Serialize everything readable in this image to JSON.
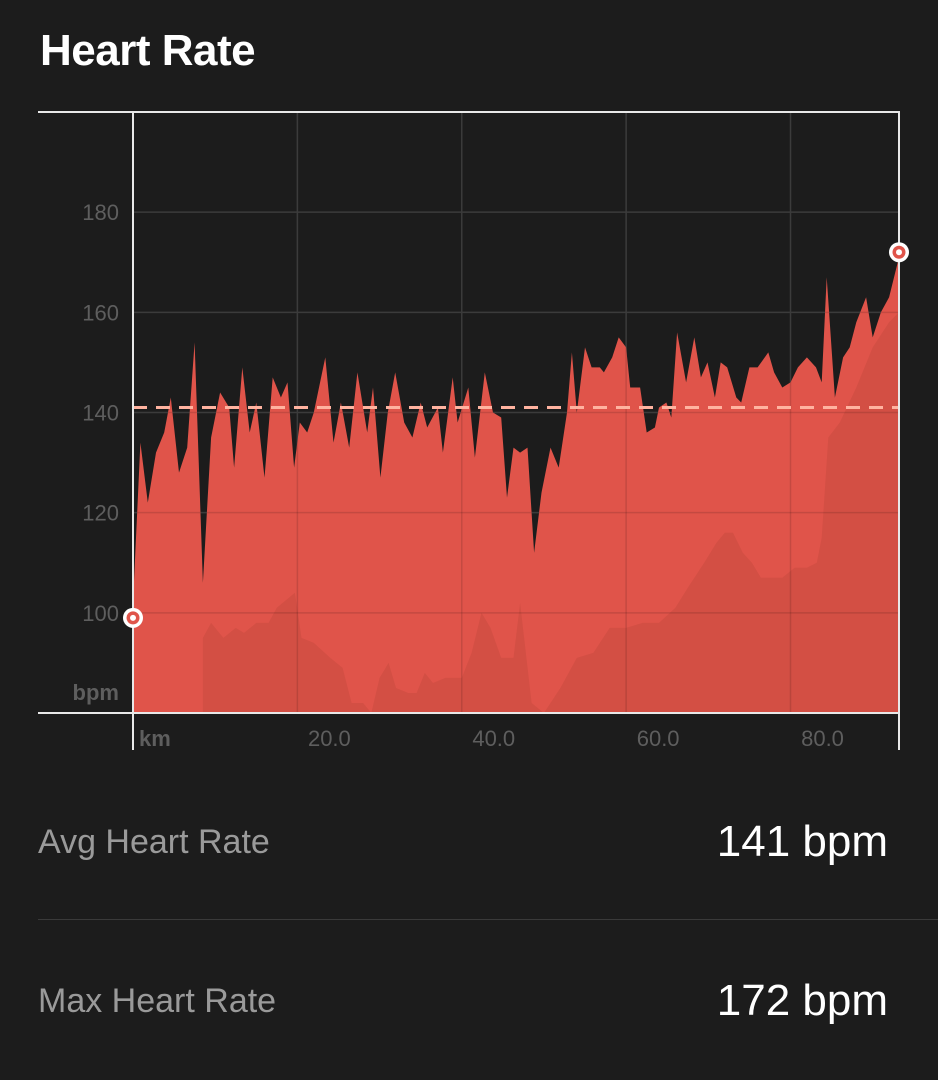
{
  "header": {
    "title": "Heart Rate"
  },
  "stats": {
    "avg_label": "Avg Heart Rate",
    "avg_value": "141 bpm",
    "max_label": "Max Heart Rate",
    "max_value": "172 bpm"
  },
  "colors": {
    "fill": "#e0544a",
    "shadow": "#c84a40",
    "avg_line": "#ffb3a0",
    "grid": "#3b3b3b",
    "frame": "#e8e8e8",
    "tick": "#5e5e5e"
  },
  "chart_data": {
    "type": "area",
    "title": "Heart Rate",
    "xunit": "km",
    "yunit": "bpm",
    "xlim": [
      0,
      93.2
    ],
    "ylim": [
      80,
      200
    ],
    "yticks": [
      100,
      120,
      140,
      160,
      180
    ],
    "xticks": [
      20,
      40,
      60,
      80
    ],
    "xtick_labels": [
      "20.0",
      "40.0",
      "60.0",
      "80.0"
    ],
    "grid": true,
    "avg_line": 141,
    "start_marker": [
      0,
      99
    ],
    "end_marker": [
      93.2,
      172
    ],
    "series": [
      {
        "values": [
          [
            0,
            102
          ],
          [
            0.9,
            134
          ],
          [
            1.8,
            122
          ],
          [
            2.8,
            132
          ],
          [
            3.8,
            136
          ],
          [
            4.6,
            143
          ],
          [
            5.6,
            128
          ],
          [
            6.6,
            133
          ],
          [
            7.5,
            154
          ],
          [
            8.5,
            106
          ],
          [
            9.5,
            135
          ],
          [
            10.6,
            144
          ],
          [
            11.7,
            141
          ],
          [
            12.3,
            129
          ],
          [
            13.3,
            149
          ],
          [
            14.2,
            136
          ],
          [
            15.0,
            142
          ],
          [
            16.0,
            127
          ],
          [
            17.0,
            147
          ],
          [
            18.0,
            143
          ],
          [
            18.8,
            146
          ],
          [
            19.6,
            129
          ],
          [
            20.3,
            138
          ],
          [
            21.2,
            136
          ],
          [
            22.0,
            140
          ],
          [
            23.4,
            151
          ],
          [
            24.4,
            134
          ],
          [
            25.3,
            142
          ],
          [
            26.3,
            133
          ],
          [
            27.3,
            148
          ],
          [
            28.5,
            136
          ],
          [
            29.2,
            145
          ],
          [
            30.1,
            127
          ],
          [
            31.0,
            140
          ],
          [
            31.9,
            148
          ],
          [
            33.0,
            138
          ],
          [
            34.0,
            135
          ],
          [
            35.0,
            142
          ],
          [
            35.8,
            137
          ],
          [
            37.1,
            141
          ],
          [
            37.7,
            132
          ],
          [
            38.9,
            147
          ],
          [
            39.5,
            138
          ],
          [
            40.8,
            145
          ],
          [
            41.6,
            131
          ],
          [
            42.8,
            148
          ],
          [
            43.8,
            140
          ],
          [
            44.8,
            139
          ],
          [
            45.5,
            123
          ],
          [
            46.3,
            133
          ],
          [
            47.1,
            132
          ],
          [
            48.0,
            133
          ],
          [
            48.8,
            112
          ],
          [
            49.7,
            124
          ],
          [
            50.8,
            133
          ],
          [
            51.8,
            129
          ],
          [
            52.8,
            140
          ],
          [
            53.4,
            152
          ],
          [
            54.0,
            140
          ],
          [
            55.0,
            153
          ],
          [
            55.8,
            149
          ],
          [
            56.8,
            149
          ],
          [
            57.3,
            148
          ],
          [
            58.3,
            151
          ],
          [
            59.1,
            155
          ],
          [
            60.0,
            153
          ],
          [
            60.5,
            145
          ],
          [
            61.7,
            145
          ],
          [
            62.5,
            136
          ],
          [
            63.5,
            137
          ],
          [
            64.0,
            141
          ],
          [
            64.9,
            142
          ],
          [
            65.5,
            139
          ],
          [
            66.2,
            156
          ],
          [
            67.3,
            146
          ],
          [
            68.3,
            155
          ],
          [
            69.1,
            147
          ],
          [
            69.9,
            150
          ],
          [
            70.8,
            143
          ],
          [
            71.5,
            150
          ],
          [
            72.3,
            149
          ],
          [
            73.4,
            143
          ],
          [
            74.0,
            142
          ],
          [
            75.0,
            149
          ],
          [
            76.0,
            149
          ],
          [
            77.3,
            152
          ],
          [
            78.0,
            148
          ],
          [
            79.0,
            145
          ],
          [
            80.0,
            146
          ],
          [
            80.9,
            149
          ],
          [
            82.0,
            151
          ],
          [
            83.1,
            149
          ],
          [
            83.8,
            146
          ],
          [
            84.4,
            167
          ],
          [
            85.4,
            143
          ],
          [
            86.4,
            151
          ],
          [
            87.2,
            153
          ],
          [
            88.0,
            158
          ],
          [
            89.2,
            163
          ],
          [
            90.0,
            155
          ],
          [
            91.0,
            160
          ],
          [
            92.0,
            163
          ],
          [
            93.2,
            171
          ]
        ]
      }
    ]
  }
}
